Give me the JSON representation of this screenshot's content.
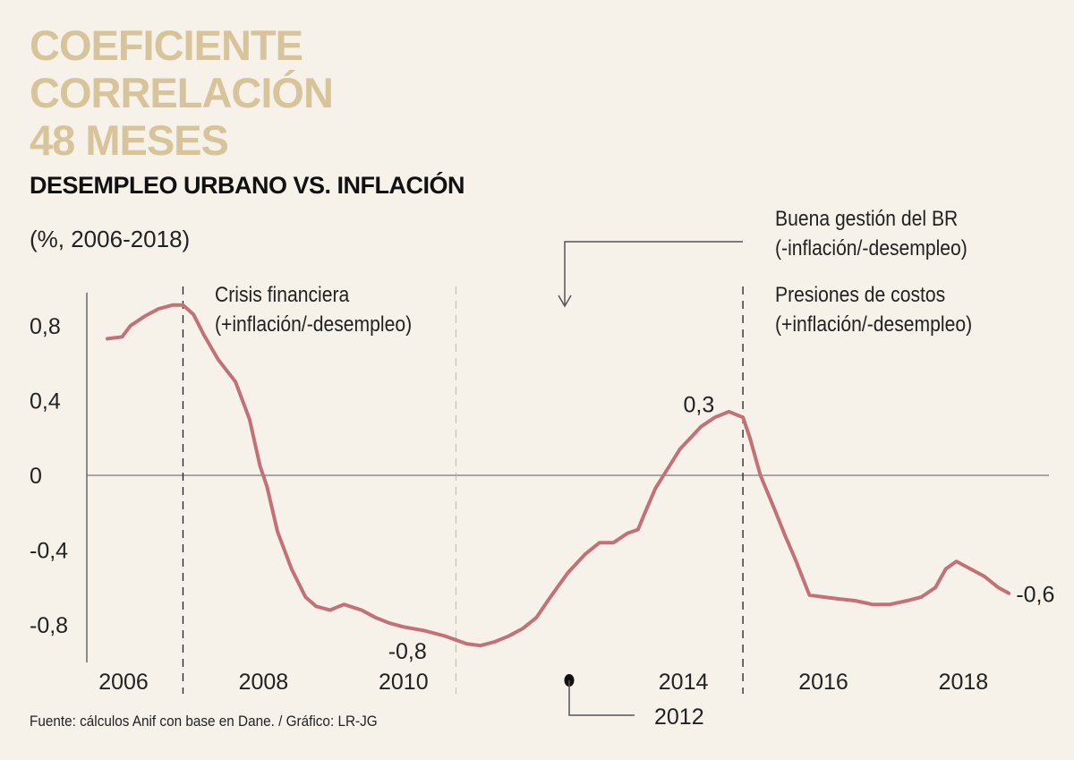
{
  "header": {
    "title_lines": [
      "COEFICIENTE",
      "CORRELACIÓN",
      "48 MESES"
    ],
    "subtitle": "DESEMPLEO URBANO VS. INFLACIÓN",
    "units": "(%, 2006-2018)"
  },
  "annotations": {
    "crisis": [
      "Crisis financiera",
      "(+inflación/-desempleo)"
    ],
    "buena_gestion": [
      "Buena gestión del BR",
      "(-inflación/-desempleo)"
    ],
    "presiones": [
      "Presiones de costos",
      "(+inflación/-desempleo)"
    ],
    "callout_year": "2012"
  },
  "footer": {
    "source": "Fuente: cálculos Anif con base en Dane. / Gráfico: LR-JG"
  },
  "colors": {
    "line": "#c47079",
    "title": "#d8c49b",
    "background": "#f6f2ea"
  },
  "chart_data": {
    "type": "line",
    "title": "Coeficiente correlación 48 meses — Desempleo urbano vs. inflación",
    "xlabel": "",
    "ylabel": "(%, 2006-2018)",
    "ylim": [
      -1.0,
      1.0
    ],
    "xlim": [
      2005.5,
      2019.3
    ],
    "y_ticks": [
      0.8,
      0.4,
      0,
      -0.4,
      -0.8
    ],
    "y_tick_labels": [
      "0,8",
      "0,4",
      "0",
      "-0,4",
      "-0,8"
    ],
    "x_ticks": [
      2006,
      2008,
      2010,
      2014,
      2016,
      2018
    ],
    "x_tick_labels": [
      "2006",
      "2008",
      "2010",
      "2014",
      "2016",
      "2018"
    ],
    "grid": false,
    "vertical_markers": [
      {
        "x": 2006.85,
        "style": "dashed"
      },
      {
        "x": 2010.75,
        "style": "dashed-light"
      },
      {
        "x": 2014.85,
        "style": "dashed"
      }
    ],
    "data_labels": [
      {
        "x": 2014.75,
        "y": 0.3,
        "text": "0,3"
      },
      {
        "x": 2010.0,
        "y": -0.8,
        "text": "-0,8"
      },
      {
        "x": 2018.6,
        "y": -0.6,
        "text": "-0,6"
      }
    ],
    "series": [
      {
        "name": "Coeficiente de correlación",
        "x": [
          2005.77,
          2005.98,
          2006.1,
          2006.3,
          2006.5,
          2006.7,
          2006.85,
          2007.0,
          2007.15,
          2007.35,
          2007.6,
          2007.8,
          2007.95,
          2008.05,
          2008.2,
          2008.4,
          2008.6,
          2008.75,
          2008.95,
          2009.15,
          2009.4,
          2009.6,
          2009.8,
          2010.0,
          2010.3,
          2010.6,
          2010.9,
          2011.1,
          2011.3,
          2011.5,
          2011.7,
          2011.9,
          2012.1,
          2012.35,
          2012.6,
          2012.8,
          2013.0,
          2013.2,
          2013.35,
          2013.45,
          2013.6,
          2013.8,
          2013.95,
          2014.1,
          2014.25,
          2014.45,
          2014.65,
          2014.85,
          2014.95,
          2015.1,
          2015.3,
          2015.45,
          2015.6,
          2015.8,
          2016.0,
          2016.2,
          2016.45,
          2016.7,
          2016.95,
          2017.2,
          2017.4,
          2017.6,
          2017.75,
          2017.9,
          2018.1,
          2018.3,
          2018.5,
          2018.65
        ],
        "values": [
          0.73,
          0.74,
          0.8,
          0.85,
          0.89,
          0.91,
          0.91,
          0.86,
          0.75,
          0.62,
          0.5,
          0.3,
          0.05,
          -0.06,
          -0.3,
          -0.5,
          -0.65,
          -0.7,
          -0.72,
          -0.69,
          -0.72,
          -0.76,
          -0.79,
          -0.81,
          -0.83,
          -0.86,
          -0.9,
          -0.91,
          -0.89,
          -0.86,
          -0.82,
          -0.76,
          -0.65,
          -0.52,
          -0.42,
          -0.36,
          -0.36,
          -0.31,
          -0.29,
          -0.2,
          -0.07,
          0.05,
          0.14,
          0.2,
          0.26,
          0.31,
          0.34,
          0.31,
          0.2,
          0.0,
          -0.18,
          -0.32,
          -0.45,
          -0.64,
          -0.65,
          -0.66,
          -0.67,
          -0.69,
          -0.69,
          -0.67,
          -0.65,
          -0.6,
          -0.5,
          -0.46,
          -0.5,
          -0.54,
          -0.6,
          -0.63
        ]
      }
    ]
  }
}
